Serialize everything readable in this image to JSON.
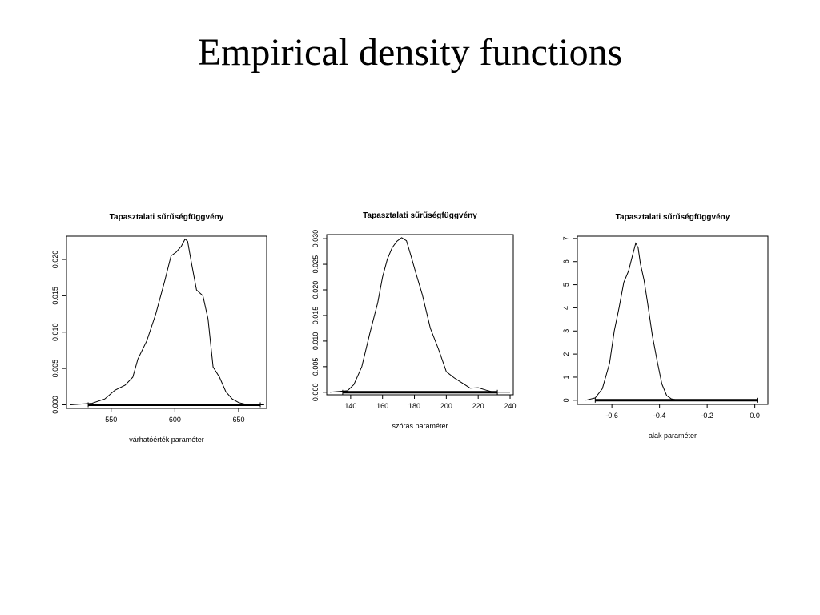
{
  "slide": {
    "title": "Empirical density functions"
  },
  "chart_data": [
    {
      "type": "line",
      "title": "Tapasztalati sűrűségfüggvény",
      "xlabel": "várhatóérték paraméter",
      "ylabel": "",
      "xlim": [
        515,
        672
      ],
      "ylim": [
        -0.0005,
        0.0232
      ],
      "xticks": [
        "550",
        "600",
        "650"
      ],
      "yticks": [
        "0.000",
        "0.005",
        "0.010",
        "0.015",
        "0.020"
      ],
      "grid": false,
      "rug": true,
      "rug_range": [
        532,
        667
      ],
      "x": [
        518,
        535,
        545,
        553,
        561,
        567,
        571,
        578,
        585,
        592,
        597,
        601,
        605,
        608,
        610,
        613,
        617,
        622,
        626,
        630,
        635,
        640,
        645,
        650,
        655,
        660,
        670
      ],
      "y": [
        0.0,
        0.0002,
        0.0008,
        0.002,
        0.0027,
        0.0038,
        0.0063,
        0.0088,
        0.0125,
        0.017,
        0.0205,
        0.021,
        0.0218,
        0.0228,
        0.0225,
        0.0195,
        0.0158,
        0.015,
        0.0118,
        0.0052,
        0.0038,
        0.0018,
        0.0008,
        0.0003,
        0.0001,
        0.0,
        0.0
      ]
    },
    {
      "type": "line",
      "title": "Tapasztalati sűrűségfüggvény",
      "xlabel": "szórás paraméter",
      "ylabel": "",
      "xlim": [
        125,
        242
      ],
      "ylim": [
        -0.0005,
        0.0308
      ],
      "xticks": [
        "140",
        "160",
        "180",
        "200",
        "220",
        "240"
      ],
      "yticks": [
        "0.000",
        "0.005",
        "0.010",
        "0.015",
        "0.020",
        "0.025",
        "0.030"
      ],
      "grid": false,
      "rug": true,
      "rug_range": [
        135,
        232
      ],
      "x": [
        127,
        138,
        142,
        147,
        152,
        157,
        160,
        163,
        166,
        169,
        172,
        175,
        178,
        181,
        185,
        190,
        195,
        200,
        205,
        210,
        215,
        220,
        225,
        230,
        240
      ],
      "y": [
        0.0,
        0.0003,
        0.0015,
        0.005,
        0.0115,
        0.0175,
        0.0225,
        0.026,
        0.0282,
        0.0295,
        0.0302,
        0.0296,
        0.0265,
        0.0232,
        0.019,
        0.0125,
        0.0085,
        0.004,
        0.0028,
        0.0018,
        0.0008,
        0.0009,
        0.0004,
        0.0,
        0.0
      ]
    },
    {
      "type": "line",
      "title": "Tapasztalati sűrűségfüggvény",
      "xlabel": "alak paraméter",
      "ylabel": "",
      "xlim": [
        -0.745,
        0.055
      ],
      "ylim": [
        -0.18,
        7.1
      ],
      "xticks": [
        "-0.6",
        "-0.4",
        "-0.2",
        "0.0"
      ],
      "yticks": [
        "0",
        "1",
        "2",
        "3",
        "4",
        "5",
        "6",
        "7"
      ],
      "grid": false,
      "rug": true,
      "rug_range": [
        -0.67,
        0.01
      ],
      "x": [
        -0.71,
        -0.67,
        -0.64,
        -0.61,
        -0.59,
        -0.57,
        -0.55,
        -0.53,
        -0.515,
        -0.5,
        -0.49,
        -0.48,
        -0.465,
        -0.45,
        -0.43,
        -0.41,
        -0.39,
        -0.37,
        -0.35,
        -0.33,
        -0.3,
        -0.2,
        0.0
      ],
      "y": [
        0.0,
        0.1,
        0.5,
        1.6,
        3.0,
        4.0,
        5.1,
        5.6,
        6.2,
        6.8,
        6.6,
        5.9,
        5.2,
        4.2,
        2.8,
        1.7,
        0.7,
        0.2,
        0.06,
        0.02,
        0.0,
        0.0,
        0.0
      ]
    }
  ]
}
